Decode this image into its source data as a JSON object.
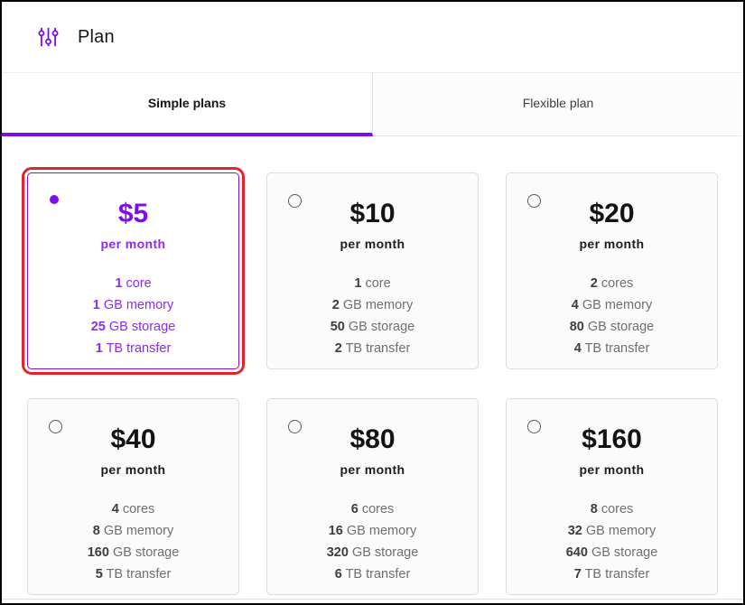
{
  "header": {
    "title": "Plan",
    "icon": "settings-adjust-icon"
  },
  "tabs": [
    {
      "label": "Simple plans",
      "active": true
    },
    {
      "label": "Flexible plan",
      "active": false
    }
  ],
  "plans": [
    {
      "price": "$5",
      "period": "per month",
      "selected": true,
      "annotated": true,
      "features": [
        {
          "value": "1",
          "unit": "core"
        },
        {
          "value": "1",
          "unit": "GB memory"
        },
        {
          "value": "25",
          "unit": "GB storage"
        },
        {
          "value": "1",
          "unit": "TB transfer"
        }
      ]
    },
    {
      "price": "$10",
      "period": "per month",
      "selected": false,
      "annotated": false,
      "features": [
        {
          "value": "1",
          "unit": "core"
        },
        {
          "value": "2",
          "unit": "GB memory"
        },
        {
          "value": "50",
          "unit": "GB storage"
        },
        {
          "value": "2",
          "unit": "TB transfer"
        }
      ]
    },
    {
      "price": "$20",
      "period": "per month",
      "selected": false,
      "annotated": false,
      "features": [
        {
          "value": "2",
          "unit": "cores"
        },
        {
          "value": "4",
          "unit": "GB memory"
        },
        {
          "value": "80",
          "unit": "GB storage"
        },
        {
          "value": "4",
          "unit": "TB transfer"
        }
      ]
    },
    {
      "price": "$40",
      "period": "per month",
      "selected": false,
      "annotated": false,
      "features": [
        {
          "value": "4",
          "unit": "cores"
        },
        {
          "value": "8",
          "unit": "GB memory"
        },
        {
          "value": "160",
          "unit": "GB storage"
        },
        {
          "value": "5",
          "unit": "TB transfer"
        }
      ]
    },
    {
      "price": "$80",
      "period": "per month",
      "selected": false,
      "annotated": false,
      "features": [
        {
          "value": "6",
          "unit": "cores"
        },
        {
          "value": "16",
          "unit": "GB memory"
        },
        {
          "value": "320",
          "unit": "GB storage"
        },
        {
          "value": "6",
          "unit": "TB transfer"
        }
      ]
    },
    {
      "price": "$160",
      "period": "per month",
      "selected": false,
      "annotated": false,
      "features": [
        {
          "value": "8",
          "unit": "cores"
        },
        {
          "value": "32",
          "unit": "GB memory"
        },
        {
          "value": "640",
          "unit": "GB storage"
        },
        {
          "value": "7",
          "unit": "TB transfer"
        }
      ]
    }
  ],
  "colors": {
    "accent": "#7c0df2",
    "purple_mid": "#8d2bef",
    "annotation_red": "#e3242b"
  }
}
